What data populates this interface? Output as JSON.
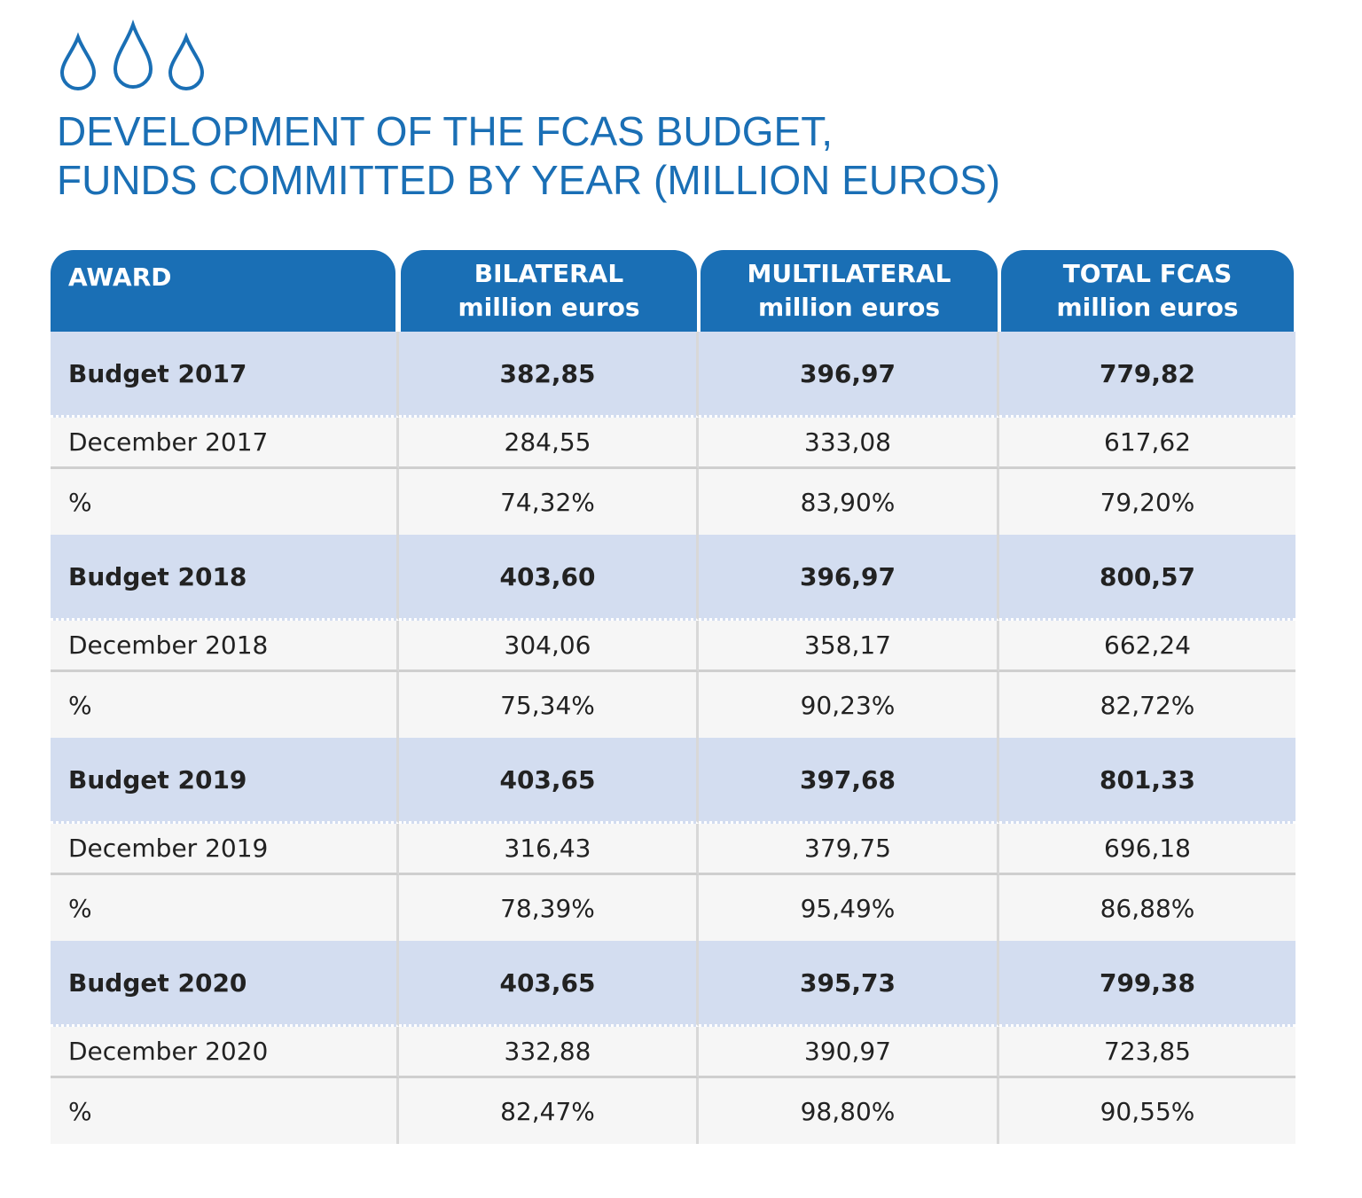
{
  "title": [
    "DEVELOPMENT OF THE FCAS BUDGET,",
    "FUNDS COMMITTED BY YEAR (MILLION EUROS)"
  ],
  "table": {
    "header": [
      [
        "AWARD"
      ],
      [
        "BILATERAL",
        "million euros"
      ],
      [
        "MULTILATERAL",
        "million euros"
      ],
      [
        "TOTAL FCAS",
        "million euros"
      ]
    ],
    "rows": [
      [
        "Budget 2017",
        "382,85",
        "396,97",
        "779,82"
      ],
      [
        "December 2017",
        "284,55",
        "333,08",
        "617,62"
      ],
      [
        "%",
        "74,32%",
        "83,90%",
        "79,20%"
      ],
      [
        "Budget 2018",
        "403,60",
        "396,97",
        "800,57"
      ],
      [
        "December 2018",
        "304,06",
        "358,17",
        "662,24"
      ],
      [
        "%",
        "75,34%",
        "90,23%",
        "82,72%"
      ],
      [
        "Budget 2019",
        "403,65",
        "397,68",
        "801,33"
      ],
      [
        "December 2019",
        "316,43",
        "379,75",
        "696,18"
      ],
      [
        "%",
        "78,39%",
        "95,49%",
        "86,88%"
      ],
      [
        "Budget 2020",
        "403,65",
        "395,73",
        "799,38"
      ],
      [
        "December 2020",
        "332,88",
        "390,97",
        "723,85"
      ],
      [
        "%",
        "82,47%",
        "98,80%",
        "90,55%"
      ]
    ]
  }
}
